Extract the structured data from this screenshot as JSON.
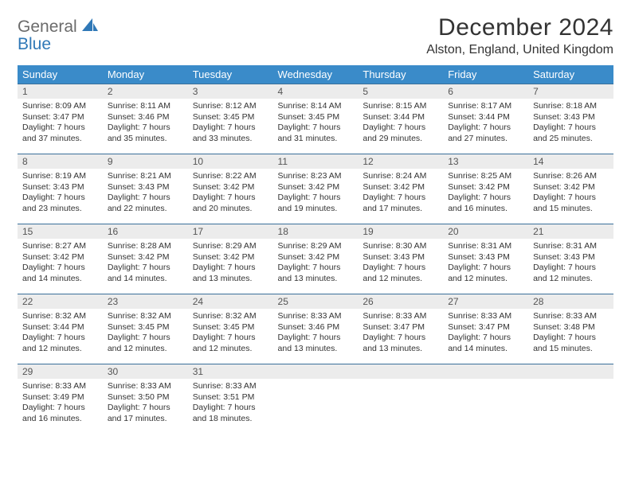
{
  "brand": {
    "general": "General",
    "blue": "Blue"
  },
  "title": "December 2024",
  "location": "Alston, England, United Kingdom",
  "colors": {
    "header_bg": "#3a8bc9",
    "header_text": "#ffffff",
    "daynum_bg": "#ececec",
    "rule": "#3a6f9a",
    "body_text": "#333333",
    "logo_gray": "#6b6b6b",
    "logo_blue": "#2f78b7"
  },
  "weekdays": [
    "Sunday",
    "Monday",
    "Tuesday",
    "Wednesday",
    "Thursday",
    "Friday",
    "Saturday"
  ],
  "weeks": [
    [
      {
        "n": "1",
        "sr": "Sunrise: 8:09 AM",
        "ss": "Sunset: 3:47 PM",
        "d1": "Daylight: 7 hours",
        "d2": "and 37 minutes."
      },
      {
        "n": "2",
        "sr": "Sunrise: 8:11 AM",
        "ss": "Sunset: 3:46 PM",
        "d1": "Daylight: 7 hours",
        "d2": "and 35 minutes."
      },
      {
        "n": "3",
        "sr": "Sunrise: 8:12 AM",
        "ss": "Sunset: 3:45 PM",
        "d1": "Daylight: 7 hours",
        "d2": "and 33 minutes."
      },
      {
        "n": "4",
        "sr": "Sunrise: 8:14 AM",
        "ss": "Sunset: 3:45 PM",
        "d1": "Daylight: 7 hours",
        "d2": "and 31 minutes."
      },
      {
        "n": "5",
        "sr": "Sunrise: 8:15 AM",
        "ss": "Sunset: 3:44 PM",
        "d1": "Daylight: 7 hours",
        "d2": "and 29 minutes."
      },
      {
        "n": "6",
        "sr": "Sunrise: 8:17 AM",
        "ss": "Sunset: 3:44 PM",
        "d1": "Daylight: 7 hours",
        "d2": "and 27 minutes."
      },
      {
        "n": "7",
        "sr": "Sunrise: 8:18 AM",
        "ss": "Sunset: 3:43 PM",
        "d1": "Daylight: 7 hours",
        "d2": "and 25 minutes."
      }
    ],
    [
      {
        "n": "8",
        "sr": "Sunrise: 8:19 AM",
        "ss": "Sunset: 3:43 PM",
        "d1": "Daylight: 7 hours",
        "d2": "and 23 minutes."
      },
      {
        "n": "9",
        "sr": "Sunrise: 8:21 AM",
        "ss": "Sunset: 3:43 PM",
        "d1": "Daylight: 7 hours",
        "d2": "and 22 minutes."
      },
      {
        "n": "10",
        "sr": "Sunrise: 8:22 AM",
        "ss": "Sunset: 3:42 PM",
        "d1": "Daylight: 7 hours",
        "d2": "and 20 minutes."
      },
      {
        "n": "11",
        "sr": "Sunrise: 8:23 AM",
        "ss": "Sunset: 3:42 PM",
        "d1": "Daylight: 7 hours",
        "d2": "and 19 minutes."
      },
      {
        "n": "12",
        "sr": "Sunrise: 8:24 AM",
        "ss": "Sunset: 3:42 PM",
        "d1": "Daylight: 7 hours",
        "d2": "and 17 minutes."
      },
      {
        "n": "13",
        "sr": "Sunrise: 8:25 AM",
        "ss": "Sunset: 3:42 PM",
        "d1": "Daylight: 7 hours",
        "d2": "and 16 minutes."
      },
      {
        "n": "14",
        "sr": "Sunrise: 8:26 AM",
        "ss": "Sunset: 3:42 PM",
        "d1": "Daylight: 7 hours",
        "d2": "and 15 minutes."
      }
    ],
    [
      {
        "n": "15",
        "sr": "Sunrise: 8:27 AM",
        "ss": "Sunset: 3:42 PM",
        "d1": "Daylight: 7 hours",
        "d2": "and 14 minutes."
      },
      {
        "n": "16",
        "sr": "Sunrise: 8:28 AM",
        "ss": "Sunset: 3:42 PM",
        "d1": "Daylight: 7 hours",
        "d2": "and 14 minutes."
      },
      {
        "n": "17",
        "sr": "Sunrise: 8:29 AM",
        "ss": "Sunset: 3:42 PM",
        "d1": "Daylight: 7 hours",
        "d2": "and 13 minutes."
      },
      {
        "n": "18",
        "sr": "Sunrise: 8:29 AM",
        "ss": "Sunset: 3:42 PM",
        "d1": "Daylight: 7 hours",
        "d2": "and 13 minutes."
      },
      {
        "n": "19",
        "sr": "Sunrise: 8:30 AM",
        "ss": "Sunset: 3:43 PM",
        "d1": "Daylight: 7 hours",
        "d2": "and 12 minutes."
      },
      {
        "n": "20",
        "sr": "Sunrise: 8:31 AM",
        "ss": "Sunset: 3:43 PM",
        "d1": "Daylight: 7 hours",
        "d2": "and 12 minutes."
      },
      {
        "n": "21",
        "sr": "Sunrise: 8:31 AM",
        "ss": "Sunset: 3:43 PM",
        "d1": "Daylight: 7 hours",
        "d2": "and 12 minutes."
      }
    ],
    [
      {
        "n": "22",
        "sr": "Sunrise: 8:32 AM",
        "ss": "Sunset: 3:44 PM",
        "d1": "Daylight: 7 hours",
        "d2": "and 12 minutes."
      },
      {
        "n": "23",
        "sr": "Sunrise: 8:32 AM",
        "ss": "Sunset: 3:45 PM",
        "d1": "Daylight: 7 hours",
        "d2": "and 12 minutes."
      },
      {
        "n": "24",
        "sr": "Sunrise: 8:32 AM",
        "ss": "Sunset: 3:45 PM",
        "d1": "Daylight: 7 hours",
        "d2": "and 12 minutes."
      },
      {
        "n": "25",
        "sr": "Sunrise: 8:33 AM",
        "ss": "Sunset: 3:46 PM",
        "d1": "Daylight: 7 hours",
        "d2": "and 13 minutes."
      },
      {
        "n": "26",
        "sr": "Sunrise: 8:33 AM",
        "ss": "Sunset: 3:47 PM",
        "d1": "Daylight: 7 hours",
        "d2": "and 13 minutes."
      },
      {
        "n": "27",
        "sr": "Sunrise: 8:33 AM",
        "ss": "Sunset: 3:47 PM",
        "d1": "Daylight: 7 hours",
        "d2": "and 14 minutes."
      },
      {
        "n": "28",
        "sr": "Sunrise: 8:33 AM",
        "ss": "Sunset: 3:48 PM",
        "d1": "Daylight: 7 hours",
        "d2": "and 15 minutes."
      }
    ],
    [
      {
        "n": "29",
        "sr": "Sunrise: 8:33 AM",
        "ss": "Sunset: 3:49 PM",
        "d1": "Daylight: 7 hours",
        "d2": "and 16 minutes."
      },
      {
        "n": "30",
        "sr": "Sunrise: 8:33 AM",
        "ss": "Sunset: 3:50 PM",
        "d1": "Daylight: 7 hours",
        "d2": "and 17 minutes."
      },
      {
        "n": "31",
        "sr": "Sunrise: 8:33 AM",
        "ss": "Sunset: 3:51 PM",
        "d1": "Daylight: 7 hours",
        "d2": "and 18 minutes."
      },
      null,
      null,
      null,
      null
    ]
  ]
}
